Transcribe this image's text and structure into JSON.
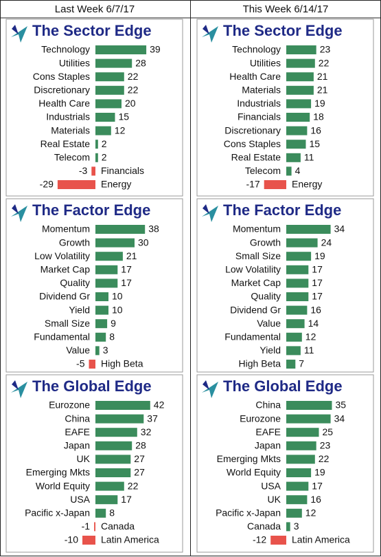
{
  "columns": [
    "Last Week 6/7/17",
    "This Week 6/14/17"
  ],
  "chart_data": [
    {
      "type": "bar",
      "orientation": "horizontal",
      "title": "The Sector Edge",
      "color": "#3b8c5c",
      "negative_color": "#e8534b",
      "categories": [
        "Technology",
        "Utilities",
        "Cons Staples",
        "Discretionary",
        "Health Care",
        "Industrials",
        "Materials",
        "Real Estate",
        "Telecom",
        "Financials",
        "Energy"
      ],
      "values": [
        39,
        28,
        22,
        22,
        20,
        15,
        12,
        2,
        2,
        -3,
        -29
      ]
    },
    {
      "type": "bar",
      "orientation": "horizontal",
      "title": "The Factor Edge",
      "color": "#3b8c5c",
      "negative_color": "#e8534b",
      "categories": [
        "Momentum",
        "Growth",
        "Low Volatility",
        "Market Cap",
        "Quality",
        "Dividend Gr",
        "Yield",
        "Small Size",
        "Fundamental",
        "Value",
        "High Beta"
      ],
      "values": [
        38,
        30,
        21,
        17,
        17,
        10,
        10,
        9,
        8,
        3,
        -5
      ]
    },
    {
      "type": "bar",
      "orientation": "horizontal",
      "title": "The Global Edge",
      "color": "#3b8c5c",
      "negative_color": "#e8534b",
      "categories": [
        "Eurozone",
        "China",
        "EAFE",
        "Japan",
        "UK",
        "Emerging Mkts",
        "World Equity",
        "USA",
        "Pacific x-Japan",
        "Canada",
        "Latin America"
      ],
      "values": [
        42,
        37,
        32,
        28,
        27,
        27,
        22,
        17,
        8,
        -1,
        -10
      ]
    },
    {
      "type": "bar",
      "orientation": "horizontal",
      "title": "The Sector Edge",
      "color": "#3b8c5c",
      "negative_color": "#e8534b",
      "categories": [
        "Technology",
        "Utilities",
        "Health Care",
        "Materials",
        "Industrials",
        "Financials",
        "Discretionary",
        "Cons Staples",
        "Real Estate",
        "Telecom",
        "Energy"
      ],
      "values": [
        23,
        22,
        21,
        21,
        19,
        18,
        16,
        15,
        11,
        4,
        -17
      ]
    },
    {
      "type": "bar",
      "orientation": "horizontal",
      "title": "The Factor Edge",
      "color": "#3b8c5c",
      "negative_color": "#e8534b",
      "categories": [
        "Momentum",
        "Growth",
        "Small Size",
        "Low Volatility",
        "Market Cap",
        "Quality",
        "Dividend Gr",
        "Value",
        "Fundamental",
        "Yield",
        "High Beta"
      ],
      "values": [
        34,
        24,
        19,
        17,
        17,
        17,
        16,
        14,
        12,
        11,
        7
      ]
    },
    {
      "type": "bar",
      "orientation": "horizontal",
      "title": "The Global Edge",
      "color": "#3b8c5c",
      "negative_color": "#e8534b",
      "categories": [
        "China",
        "Eurozone",
        "EAFE",
        "Japan",
        "Emerging Mkts",
        "World Equity",
        "USA",
        "UK",
        "Pacific x-Japan",
        "Canada",
        "Latin America"
      ],
      "values": [
        35,
        34,
        25,
        23,
        22,
        19,
        17,
        16,
        12,
        3,
        -12
      ]
    }
  ]
}
